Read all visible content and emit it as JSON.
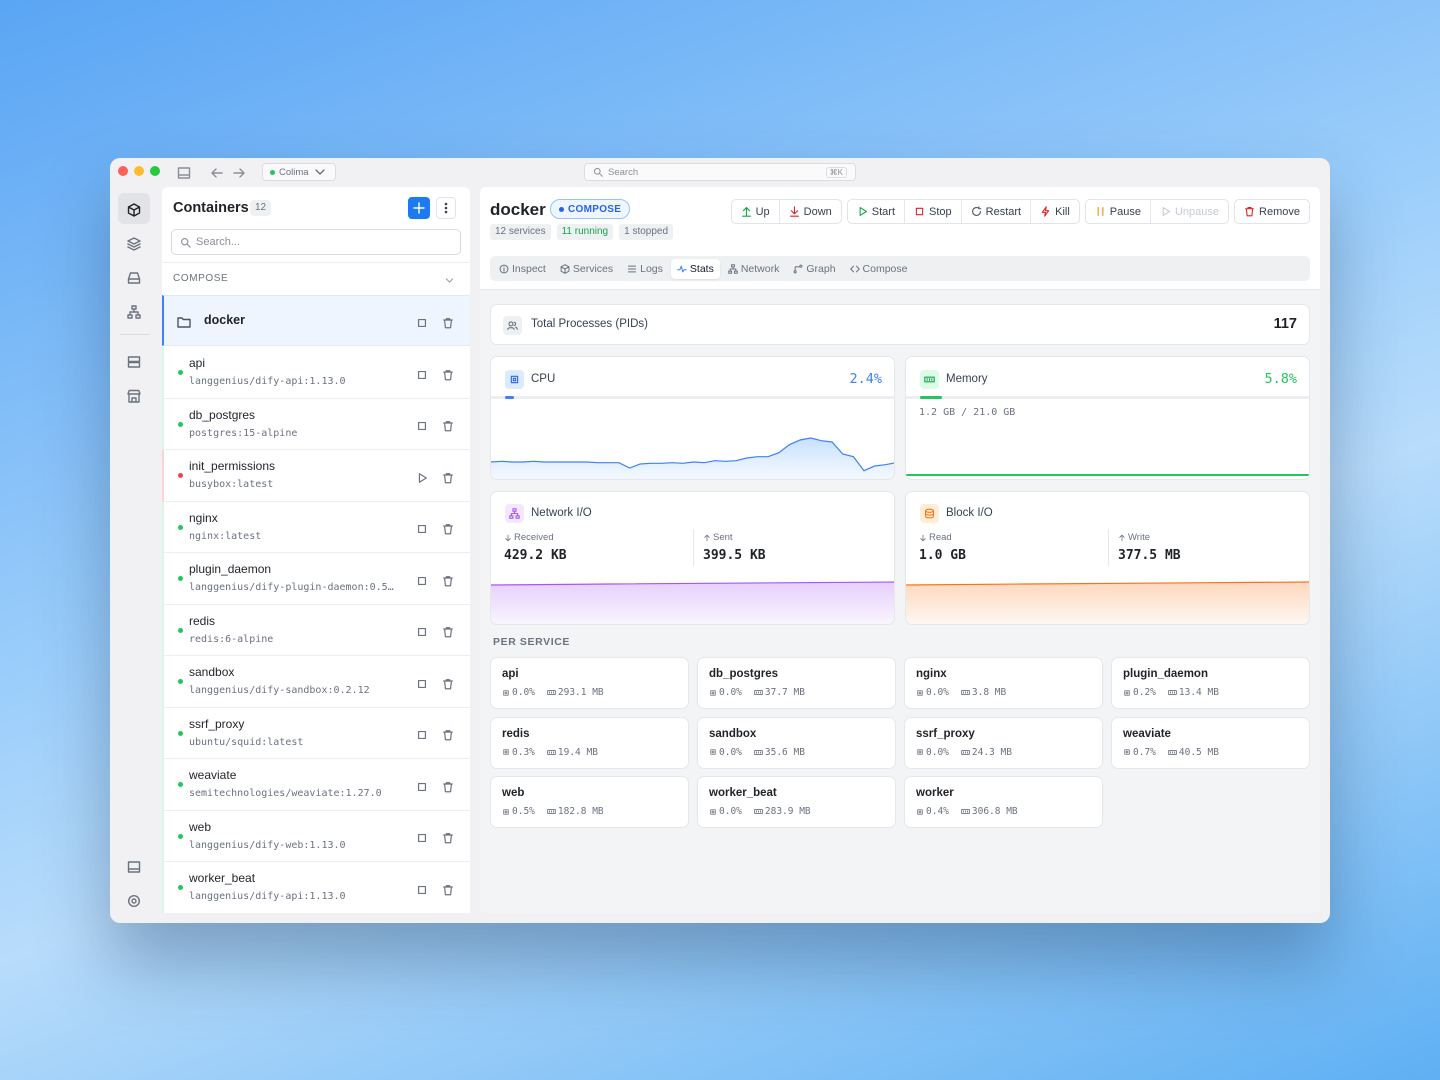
{
  "titlebar": {
    "context": "Colima",
    "search": "Search",
    "shortcut": "⌘K"
  },
  "sidebar": {
    "title": "Containers",
    "count": 12,
    "search_placeholder": "Search...",
    "section": "COMPOSE",
    "group": {
      "name": "docker"
    },
    "containers": [
      {
        "name": "api",
        "image": "langgenius/dify-api:1.13.0",
        "status": "running"
      },
      {
        "name": "db_postgres",
        "image": "postgres:15-alpine",
        "status": "running"
      },
      {
        "name": "init_permissions",
        "image": "busybox:latest",
        "status": "stopped"
      },
      {
        "name": "nginx",
        "image": "nginx:latest",
        "status": "running"
      },
      {
        "name": "plugin_daemon",
        "image": "langgenius/dify-plugin-daemon:0.5…",
        "status": "running"
      },
      {
        "name": "redis",
        "image": "redis:6-alpine",
        "status": "running"
      },
      {
        "name": "sandbox",
        "image": "langgenius/dify-sandbox:0.2.12",
        "status": "running"
      },
      {
        "name": "ssrf_proxy",
        "image": "ubuntu/squid:latest",
        "status": "running"
      },
      {
        "name": "weaviate",
        "image": "semitechnologies/weaviate:1.27.0",
        "status": "running"
      },
      {
        "name": "web",
        "image": "langgenius/dify-web:1.13.0",
        "status": "running"
      },
      {
        "name": "worker_beat",
        "image": "langgenius/dify-api:1.13.0",
        "status": "running"
      }
    ]
  },
  "header": {
    "title": "docker",
    "badge": "COMPOSE",
    "chips": [
      {
        "text": "12 services",
        "color": "#6b7280"
      },
      {
        "text": "11 running",
        "color": "#16a34a"
      },
      {
        "text": "1 stopped",
        "color": "#6b7280"
      }
    ],
    "action_groups": [
      [
        {
          "label": "Up",
          "color": "#16a34a"
        },
        {
          "label": "Down",
          "color": "#dc2626"
        }
      ],
      [
        {
          "label": "Start",
          "color": "#16a34a"
        },
        {
          "label": "Stop",
          "color": "#dc2626"
        },
        {
          "label": "Restart",
          "color": "#4b5563"
        },
        {
          "label": "Kill",
          "color": "#dc2626"
        }
      ],
      [
        {
          "label": "Pause",
          "color": "#ea8a0c"
        },
        {
          "label": "Unpause",
          "color": "#c7cbd1"
        }
      ],
      [
        {
          "label": "Remove",
          "color": "#dc2626"
        }
      ]
    ]
  },
  "tabs": {
    "items": [
      "Inspect",
      "Services",
      "Logs",
      "Stats",
      "Network",
      "Graph",
      "Compose"
    ],
    "active": 3
  },
  "stats": {
    "pids": {
      "label": "Total Processes (PIDs)",
      "value": 117
    },
    "cpu": {
      "label": "CPU",
      "value": 2.4,
      "value_label": "2.4%",
      "history": [
        1.2,
        1.25,
        1.2,
        1.2,
        1.25,
        1.2,
        1.2,
        1.2,
        1.2,
        1.2,
        1.15,
        1.15,
        1.15,
        0.75,
        1.05,
        1.1,
        1.1,
        1.15,
        1.1,
        1.2,
        1.15,
        1.3,
        1.25,
        1.3,
        1.5,
        1.6,
        1.6,
        1.9,
        2.5,
        2.85,
        3.0,
        2.8,
        2.7,
        1.8,
        1.6,
        0.55,
        0.9,
        1.0,
        1.15
      ]
    },
    "memory": {
      "label": "Memory",
      "value": 5.8,
      "value_label": "5.8%",
      "detail": "1.2 GB / 21.0 GB"
    },
    "network": {
      "label": "Network I/O",
      "items": [
        {
          "label": "Received",
          "value": "429.2 KB"
        },
        {
          "label": "Sent",
          "value": "399.5 KB"
        }
      ]
    },
    "block": {
      "label": "Block I/O",
      "items": [
        {
          "label": "Read",
          "value": "1.0 GB"
        },
        {
          "label": "Write",
          "value": "377.5 MB"
        }
      ]
    }
  },
  "per_service": {
    "title": "PER SERVICE",
    "services": [
      {
        "name": "api",
        "cpu": "0.0%",
        "memory": "293.1 MB"
      },
      {
        "name": "db_postgres",
        "cpu": "0.0%",
        "memory": "37.7 MB"
      },
      {
        "name": "nginx",
        "cpu": "0.0%",
        "memory": "3.8 MB"
      },
      {
        "name": "plugin_daemon",
        "cpu": "0.2%",
        "memory": "13.4 MB"
      },
      {
        "name": "redis",
        "cpu": "0.3%",
        "memory": "19.4 MB"
      },
      {
        "name": "sandbox",
        "cpu": "0.0%",
        "memory": "35.6 MB"
      },
      {
        "name": "ssrf_proxy",
        "cpu": "0.0%",
        "memory": "24.3 MB"
      },
      {
        "name": "weaviate",
        "cpu": "0.7%",
        "memory": "40.5 MB"
      },
      {
        "name": "web",
        "cpu": "0.5%",
        "memory": "182.8 MB"
      },
      {
        "name": "worker_beat",
        "cpu": "0.0%",
        "memory": "283.9 MB"
      },
      {
        "name": "worker",
        "cpu": "0.4%",
        "memory": "306.8 MB"
      }
    ]
  }
}
